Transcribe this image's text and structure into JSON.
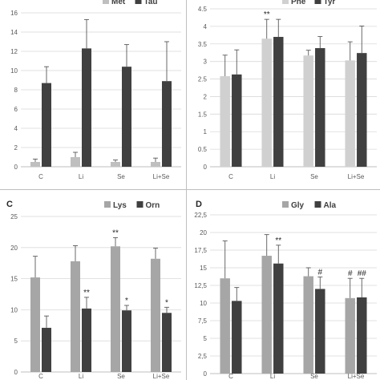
{
  "chart_data": [
    {
      "type": "bar",
      "panel_label": "",
      "categories": [
        "C",
        "Li",
        "Se",
        "Li+Se"
      ],
      "ylim": [
        0,
        16
      ],
      "yticks": [
        0,
        2,
        4,
        6,
        8,
        10,
        12,
        14,
        16
      ],
      "grid": true,
      "legend_position": "top",
      "series": [
        {
          "name": "Met",
          "color": "#bfbfbf",
          "values": [
            0.5,
            1.0,
            0.5,
            0.5
          ],
          "errors": [
            0.3,
            0.5,
            0.2,
            0.4
          ],
          "annotations": [
            "",
            "",
            "",
            ""
          ]
        },
        {
          "name": "Tau",
          "color": "#404040",
          "values": [
            8.7,
            12.3,
            10.4,
            8.9
          ],
          "errors": [
            1.7,
            3.0,
            2.3,
            4.1
          ],
          "annotations": [
            "",
            "",
            "",
            ""
          ]
        }
      ]
    },
    {
      "type": "bar",
      "panel_label": "",
      "categories": [
        "C",
        "Li",
        "Se",
        "Li+Se"
      ],
      "ylim": [
        0,
        4.5
      ],
      "yticks": [
        0,
        0.5,
        1,
        1.5,
        2,
        2.5,
        3,
        3.5,
        4,
        4.5
      ],
      "grid": true,
      "legend_position": "top",
      "series": [
        {
          "name": "Phe",
          "color": "#d0d0d0",
          "values": [
            2.58,
            3.65,
            3.17,
            3.03
          ],
          "errors": [
            0.6,
            0.55,
            0.15,
            0.53
          ],
          "annotations": [
            "",
            "**",
            "",
            ""
          ]
        },
        {
          "name": "Tyr",
          "color": "#404040",
          "values": [
            2.63,
            3.7,
            3.38,
            3.24
          ],
          "errors": [
            0.7,
            0.5,
            0.33,
            0.77
          ],
          "annotations": [
            "",
            "",
            "",
            ""
          ]
        }
      ]
    },
    {
      "type": "bar",
      "panel_label": "C",
      "categories": [
        "C",
        "Li",
        "Se",
        "Li+Se"
      ],
      "ylim": [
        0,
        25
      ],
      "yticks": [
        0,
        5,
        10,
        15,
        20,
        25
      ],
      "grid": true,
      "legend_position": "top-right",
      "series": [
        {
          "name": "Lys",
          "color": "#a6a6a6",
          "values": [
            15.2,
            17.8,
            20.2,
            18.2
          ],
          "errors": [
            3.4,
            2.5,
            1.4,
            1.7
          ],
          "annotations": [
            "",
            "",
            "**",
            ""
          ]
        },
        {
          "name": "Orn",
          "color": "#404040",
          "values": [
            7.1,
            10.2,
            9.9,
            9.5
          ],
          "errors": [
            1.9,
            1.8,
            0.8,
            0.9
          ],
          "annotations": [
            "",
            "**",
            "*",
            "*"
          ]
        }
      ]
    },
    {
      "type": "bar",
      "panel_label": "D",
      "categories": [
        "C",
        "Li",
        "Se",
        "Li+Se"
      ],
      "ylim": [
        0,
        22.5
      ],
      "yticks": [
        "0",
        "2,5",
        "5",
        "7,5",
        "10",
        "12,5",
        "15",
        "17,5",
        "20",
        "22,5"
      ],
      "ytick_values": [
        0,
        2.5,
        5,
        7.5,
        10,
        12.5,
        15,
        17.5,
        20,
        22.5
      ],
      "grid": true,
      "legend_position": "top-right",
      "series": [
        {
          "name": "Gly",
          "color": "#a6a6a6",
          "values": [
            13.5,
            16.7,
            13.8,
            10.7
          ],
          "errors": [
            5.3,
            3.0,
            1.2,
            2.8
          ],
          "annotations": [
            "",
            "",
            "",
            "#"
          ]
        },
        {
          "name": "Ala",
          "color": "#404040",
          "values": [
            10.3,
            15.6,
            12.0,
            10.8
          ],
          "errors": [
            1.9,
            2.6,
            1.7,
            2.7
          ],
          "annotations": [
            "",
            "**",
            "#",
            "##"
          ]
        }
      ]
    }
  ]
}
